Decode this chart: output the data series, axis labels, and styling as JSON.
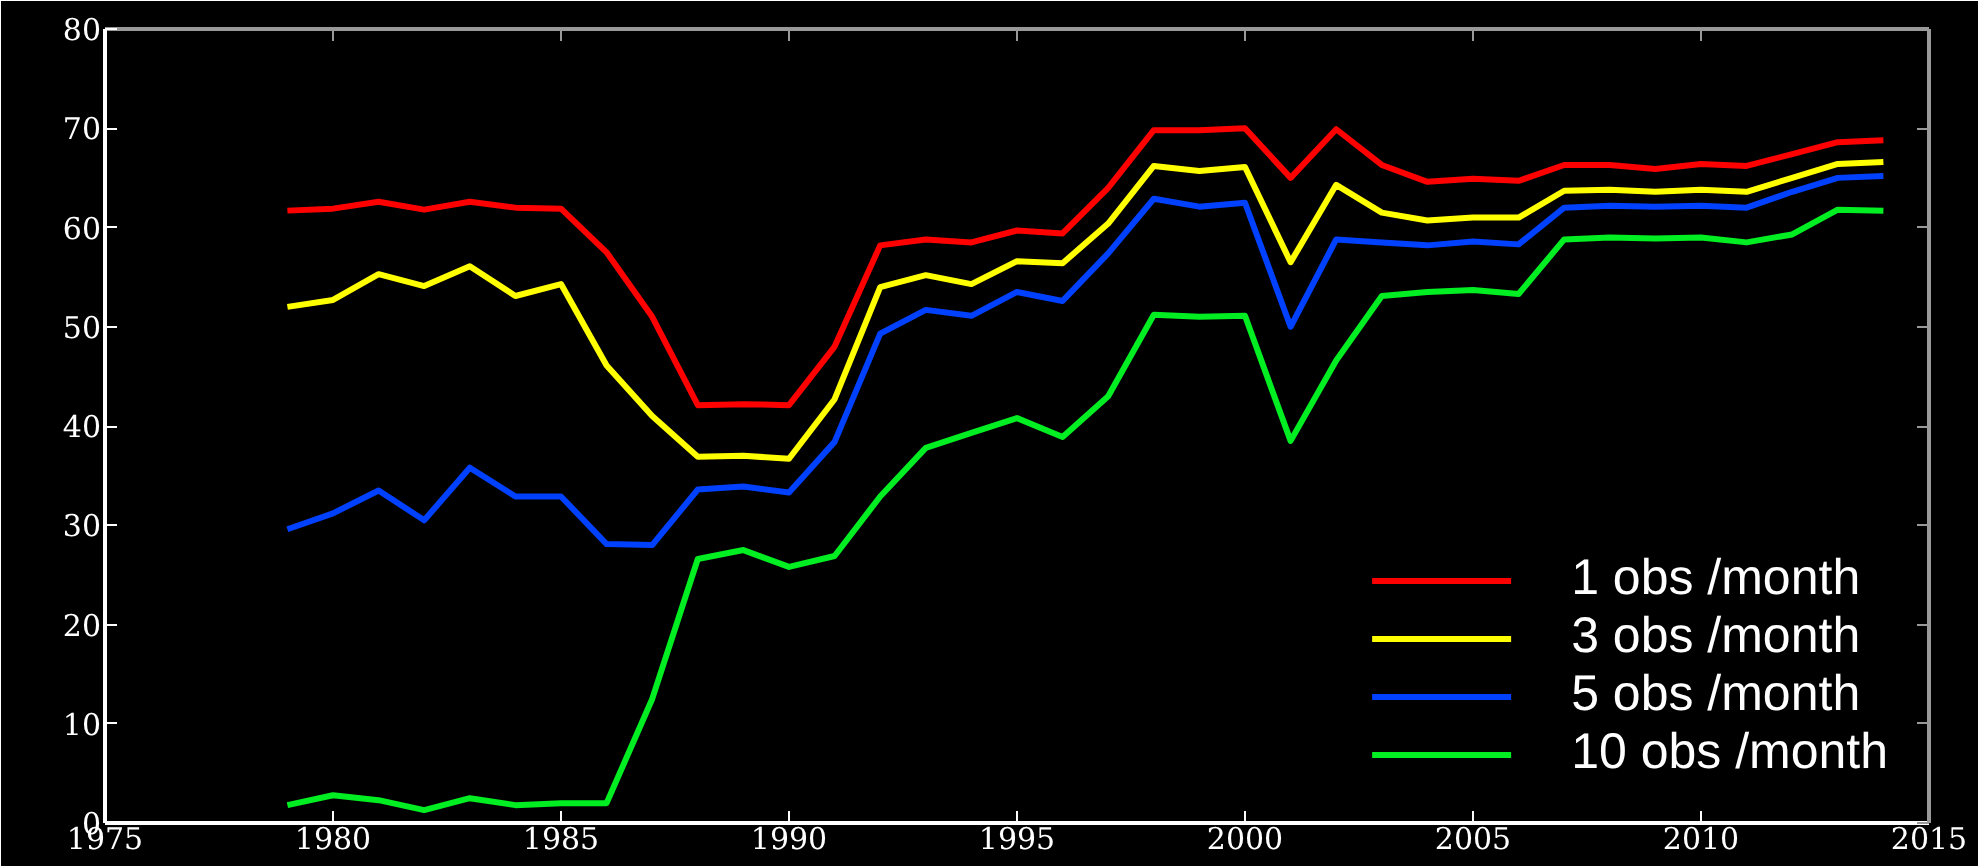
{
  "chart_data": {
    "type": "line",
    "x": [
      1979,
      1980,
      1981,
      1982,
      1983,
      1984,
      1985,
      1986,
      1987,
      1988,
      1989,
      1990,
      1991,
      1992,
      1993,
      1994,
      1995,
      1996,
      1997,
      1998,
      1999,
      2000,
      2001,
      2002,
      2003,
      2004,
      2005,
      2006,
      2007,
      2008,
      2009,
      2010,
      2011,
      2012,
      2013,
      2014
    ],
    "series": [
      {
        "name": "1 obs /month",
        "color": "#ff0000",
        "values": [
          61.7,
          61.9,
          62.6,
          61.8,
          62.6,
          62.0,
          61.9,
          57.5,
          51.0,
          42.1,
          42.2,
          42.1,
          48.0,
          58.2,
          58.8,
          58.5,
          59.7,
          59.4,
          64.0,
          69.8,
          69.8,
          70.0,
          65.0,
          69.9,
          66.3,
          64.6,
          64.9,
          64.7,
          66.3,
          66.3,
          65.9,
          66.4,
          66.2,
          67.4,
          68.6,
          68.8
        ]
      },
      {
        "name": "3 obs /month",
        "color": "#ffff00",
        "values": [
          52.0,
          52.7,
          55.3,
          54.1,
          56.1,
          53.1,
          54.3,
          46.1,
          41.0,
          36.9,
          37.0,
          36.7,
          42.7,
          54.0,
          55.2,
          54.3,
          56.6,
          56.4,
          60.4,
          66.2,
          65.7,
          66.1,
          56.5,
          64.3,
          61.5,
          60.7,
          61.0,
          61.0,
          63.7,
          63.8,
          63.6,
          63.8,
          63.6,
          65.0,
          66.4,
          66.6
        ]
      },
      {
        "name": "5 obs /month",
        "color": "#0040ff",
        "values": [
          29.6,
          31.2,
          33.5,
          30.5,
          35.8,
          32.9,
          32.9,
          28.1,
          28.0,
          33.6,
          33.9,
          33.3,
          38.4,
          49.3,
          51.7,
          51.1,
          53.5,
          52.6,
          57.4,
          62.9,
          62.1,
          62.5,
          50.0,
          58.8,
          58.5,
          58.2,
          58.6,
          58.3,
          62.0,
          62.2,
          62.1,
          62.2,
          62.0,
          63.6,
          65.0,
          65.2
        ]
      },
      {
        "name": "10 obs /month",
        "color": "#00ee22",
        "values": [
          1.8,
          2.8,
          2.3,
          1.3,
          2.5,
          1.8,
          2.0,
          2.0,
          12.5,
          26.6,
          27.5,
          25.8,
          26.9,
          32.9,
          37.8,
          39.3,
          40.8,
          38.9,
          43.0,
          51.2,
          51.0,
          51.1,
          38.5,
          46.6,
          53.1,
          53.5,
          53.7,
          53.3,
          58.8,
          59.0,
          58.9,
          59.0,
          58.5,
          59.3,
          61.8,
          61.7
        ]
      }
    ],
    "xlim": [
      1975,
      2015
    ],
    "xticks": [
      1975,
      1980,
      1985,
      1990,
      1995,
      2000,
      2005,
      2010,
      2015
    ],
    "ylim": [
      0,
      80
    ],
    "yticks": [
      0,
      10,
      20,
      30,
      40,
      50,
      60,
      70,
      80
    ],
    "grid": false,
    "legend": "bottom right",
    "marker": "none",
    "line_style": "solid"
  }
}
